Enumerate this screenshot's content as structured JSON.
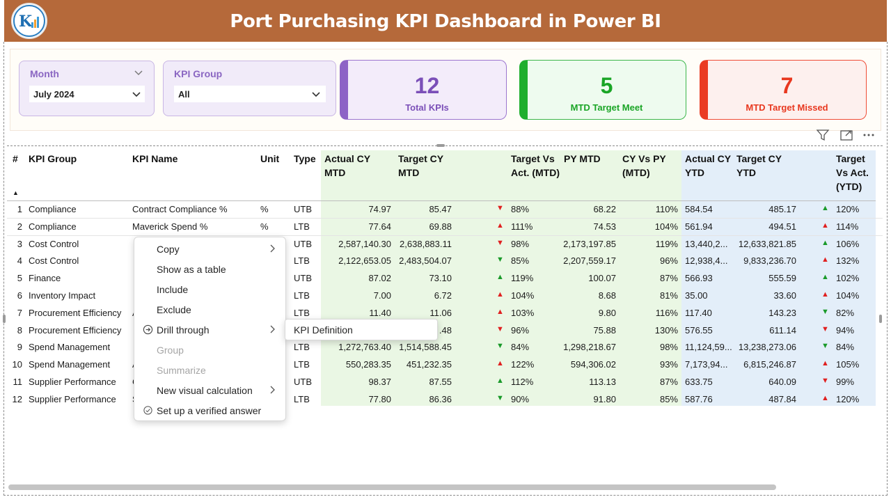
{
  "header": {
    "title": "Port Purchasing KPI Dashboard in Power BI"
  },
  "filters": {
    "month": {
      "title": "Month",
      "value": "July 2024"
    },
    "kpi_group": {
      "title": "KPI Group",
      "value": "All"
    }
  },
  "cards": {
    "total": {
      "value": "12",
      "label": "Total KPIs"
    },
    "meet": {
      "value": "5",
      "label": "MTD Target Meet"
    },
    "missed": {
      "value": "7",
      "label": "MTD Target Missed"
    }
  },
  "table": {
    "headers": {
      "num": "#",
      "kpi_group": "KPI Group",
      "kpi_name": "KPI Name",
      "unit": "Unit",
      "type": "Type",
      "actual_mtd": "Actual CY MTD",
      "target_mtd": "Target CY MTD",
      "tva_mtd": "Target Vs Act. (MTD)",
      "py_mtd": "PY MTD",
      "cyvspy_mtd": "CY Vs PY (MTD)",
      "actual_ytd": "Actual CY YTD",
      "target_ytd": "Target CY YTD",
      "tva_ytd": "Target Vs Act. (YTD)"
    },
    "sort_indicator": "▲",
    "rows": [
      {
        "num": "1",
        "group": "Compliance",
        "name": "Contract Compliance %",
        "unit": "%",
        "type": "UTB",
        "actual_mtd": "74.97",
        "target_mtd": "85.47",
        "mtd_icon": "down-red",
        "tva_mtd": "88%",
        "py_mtd": "68.22",
        "cyvspy": "110%",
        "actual_ytd": "584.54",
        "target_ytd": "485.17",
        "ytd_icon": "up-green",
        "tva_ytd": "120%"
      },
      {
        "num": "2",
        "group": "Compliance",
        "name": "Maverick Spend %",
        "unit": "%",
        "type": "LTB",
        "actual_mtd": "77.64",
        "target_mtd": "69.88",
        "mtd_icon": "up-red",
        "tva_mtd": "111%",
        "py_mtd": "74.53",
        "cyvspy": "104%",
        "actual_ytd": "561.94",
        "target_ytd": "494.51",
        "ytd_icon": "up-red",
        "tva_ytd": "114%"
      },
      {
        "num": "3",
        "group": "Cost Control",
        "name": "",
        "unit": "",
        "type": "UTB",
        "actual_mtd": "2,587,140.30",
        "target_mtd": "2,638,883.11",
        "mtd_icon": "down-red",
        "tva_mtd": "98%",
        "py_mtd": "2,173,197.85",
        "cyvspy": "119%",
        "actual_ytd": "13,440,2...",
        "target_ytd": "12,633,821.85",
        "ytd_icon": "up-green",
        "tva_ytd": "106%"
      },
      {
        "num": "4",
        "group": "Cost Control",
        "name": "",
        "unit": "",
        "type": "LTB",
        "actual_mtd": "2,122,653.05",
        "target_mtd": "2,483,504.07",
        "mtd_icon": "down-green",
        "tva_mtd": "85%",
        "py_mtd": "2,207,559.17",
        "cyvspy": "96%",
        "actual_ytd": "12,938,4...",
        "target_ytd": "9,833,236.70",
        "ytd_icon": "up-red",
        "tva_ytd": "132%"
      },
      {
        "num": "5",
        "group": "Finance",
        "name": "",
        "unit": "",
        "type": "UTB",
        "actual_mtd": "87.02",
        "target_mtd": "73.10",
        "mtd_icon": "up-green",
        "tva_mtd": "119%",
        "py_mtd": "100.07",
        "cyvspy": "87%",
        "actual_ytd": "566.93",
        "target_ytd": "555.59",
        "ytd_icon": "up-green",
        "tva_ytd": "102%"
      },
      {
        "num": "6",
        "group": "Inventory Impact",
        "name": "",
        "unit": "",
        "type": "LTB",
        "actual_mtd": "7.00",
        "target_mtd": "6.72",
        "mtd_icon": "up-red",
        "tva_mtd": "104%",
        "py_mtd": "8.68",
        "cyvspy": "81%",
        "actual_ytd": "35.00",
        "target_ytd": "33.60",
        "ytd_icon": "up-red",
        "tva_ytd": "104%"
      },
      {
        "num": "7",
        "group": "Procurement Efficiency",
        "name": "A",
        "unit": "",
        "type": "LTB",
        "actual_mtd": "11.40",
        "target_mtd": "11.06",
        "mtd_icon": "up-red",
        "tva_mtd": "103%",
        "py_mtd": "9.80",
        "cyvspy": "116%",
        "actual_ytd": "117.40",
        "target_ytd": "143.23",
        "ytd_icon": "down-green",
        "tva_ytd": "82%"
      },
      {
        "num": "8",
        "group": "Procurement Efficiency",
        "name": "",
        "unit": "",
        "type": "LTB",
        "actual_mtd": "",
        "target_mtd": ".48",
        "mtd_icon": "down-red",
        "tva_mtd": "96%",
        "py_mtd": "75.88",
        "cyvspy": "130%",
        "actual_ytd": "576.55",
        "target_ytd": "611.14",
        "ytd_icon": "down-red",
        "tva_ytd": "94%"
      },
      {
        "num": "9",
        "group": "Spend Management",
        "name": "",
        "unit": "",
        "type": "LTB",
        "actual_mtd": "1,272,763.40",
        "target_mtd": "1,514,588.45",
        "mtd_icon": "down-green",
        "tva_mtd": "84%",
        "py_mtd": "1,298,218.67",
        "cyvspy": "98%",
        "actual_ytd": "11,124,59...",
        "target_ytd": "13,238,273.06",
        "ytd_icon": "down-green",
        "tva_ytd": "84%"
      },
      {
        "num": "10",
        "group": "Spend Management",
        "name": "A",
        "unit": "",
        "type": "LTB",
        "actual_mtd": "550,283.35",
        "target_mtd": "451,232.35",
        "mtd_icon": "up-red",
        "tva_mtd": "122%",
        "py_mtd": "594,306.02",
        "cyvspy": "93%",
        "actual_ytd": "7,173,94...",
        "target_ytd": "6,815,246.87",
        "ytd_icon": "up-red",
        "tva_ytd": "105%"
      },
      {
        "num": "11",
        "group": "Supplier Performance",
        "name": "C",
        "unit": "",
        "type": "UTB",
        "actual_mtd": "98.37",
        "target_mtd": "87.55",
        "mtd_icon": "up-green",
        "tva_mtd": "112%",
        "py_mtd": "113.13",
        "cyvspy": "87%",
        "actual_ytd": "633.75",
        "target_ytd": "640.09",
        "ytd_icon": "down-red",
        "tva_ytd": "99%"
      },
      {
        "num": "12",
        "group": "Supplier Performance",
        "name": "S",
        "unit": "",
        "type": "LTB",
        "actual_mtd": "77.80",
        "target_mtd": "86.36",
        "mtd_icon": "down-green",
        "tva_mtd": "90%",
        "py_mtd": "91.80",
        "cyvspy": "85%",
        "actual_ytd": "587.76",
        "target_ytd": "487.84",
        "ytd_icon": "up-red",
        "tva_ytd": "120%"
      }
    ]
  },
  "context_menu": {
    "items": [
      {
        "label": "Copy",
        "has_submenu": true,
        "icon": "",
        "disabled": false
      },
      {
        "label": "Show as a table",
        "has_submenu": false,
        "icon": "",
        "disabled": false
      },
      {
        "label": "Include",
        "has_submenu": false,
        "icon": "",
        "disabled": false
      },
      {
        "label": "Exclude",
        "has_submenu": false,
        "icon": "",
        "disabled": false
      },
      {
        "label": "Drill through",
        "has_submenu": true,
        "icon": "arrow-circle-icon",
        "disabled": false
      },
      {
        "label": "Group",
        "has_submenu": false,
        "icon": "",
        "disabled": true
      },
      {
        "label": "Summarize",
        "has_submenu": false,
        "icon": "",
        "disabled": true
      },
      {
        "label": "New visual calculation",
        "has_submenu": true,
        "icon": "",
        "disabled": false
      },
      {
        "label": "Set up a verified answer",
        "has_submenu": false,
        "icon": "check-circle-icon",
        "disabled": false
      }
    ],
    "submenu": {
      "label": "KPI Definition"
    }
  },
  "colors": {
    "header": "#b5693a",
    "purple": "#8d63c6",
    "green": "#1fae2d",
    "red": "#ea3b22",
    "mtd_band": "#eaf7e4",
    "ytd_band": "#e3eef9"
  },
  "icons": {
    "filter": "filter-icon",
    "focus": "focus-mode-icon",
    "more": "more-options-icon"
  }
}
